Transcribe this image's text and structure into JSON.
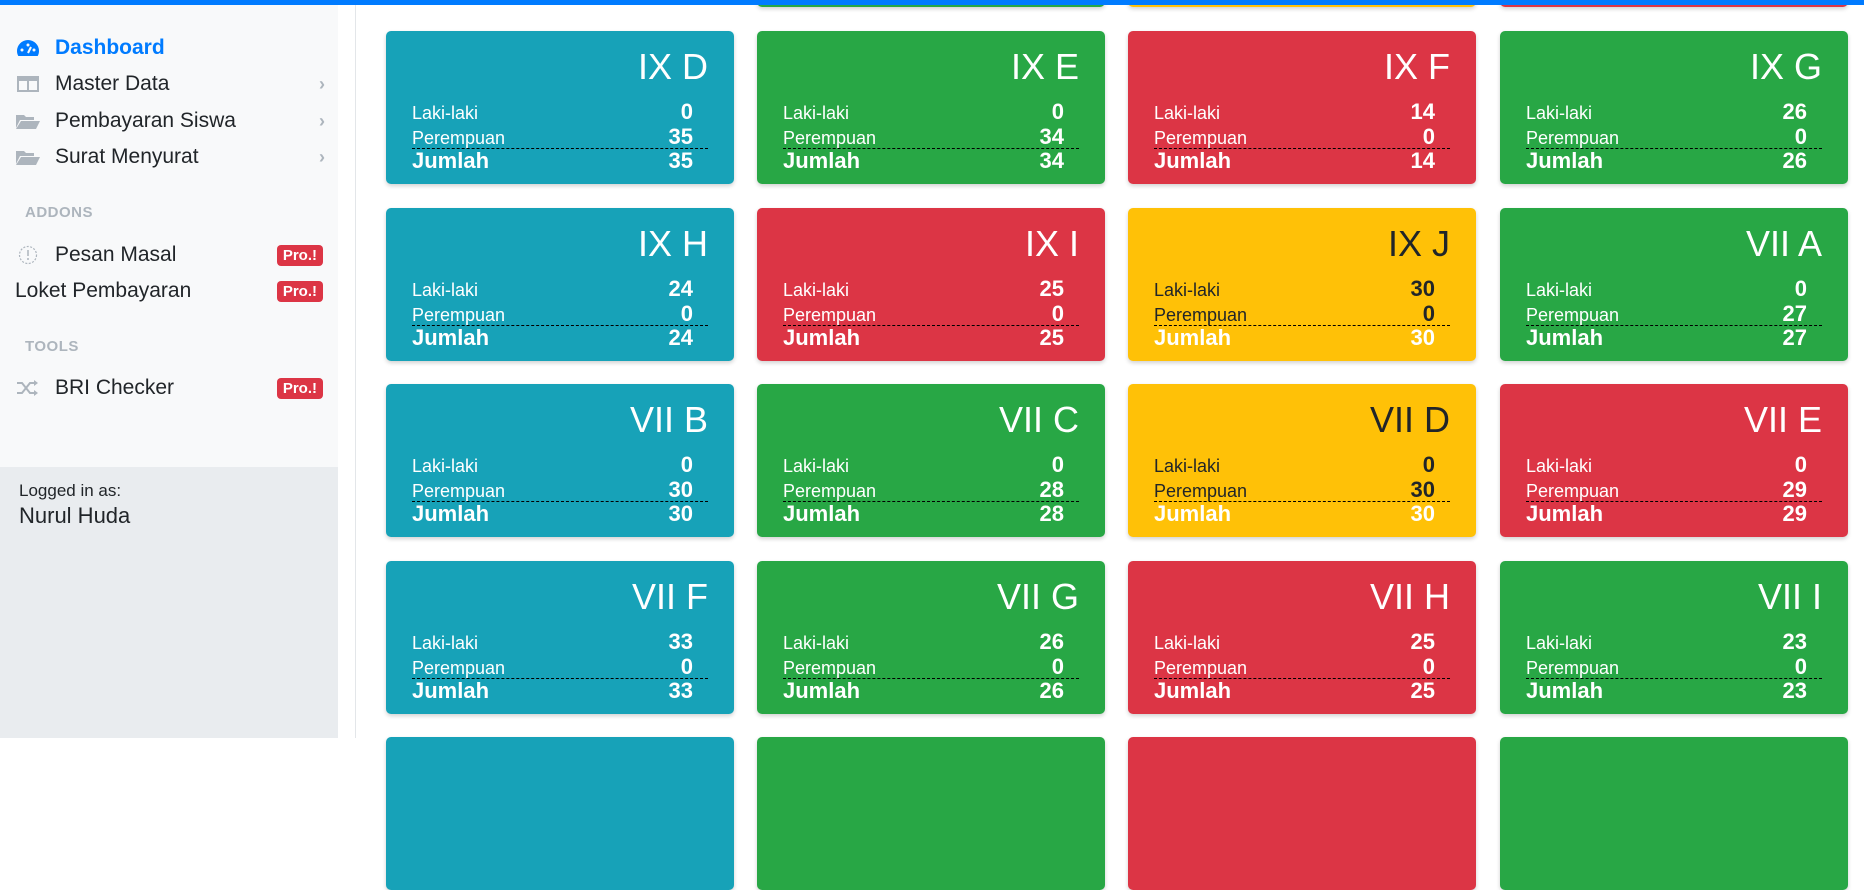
{
  "colors": {
    "primary": "#007bff",
    "info": "#17a2b8",
    "success": "#28a745",
    "danger": "#dc3545",
    "warning": "#ffc107"
  },
  "sidebar": {
    "items": [
      {
        "label": "Dashboard",
        "icon": "dashboard-gauge-icon",
        "active": true
      },
      {
        "label": "Master Data",
        "icon": "columns-icon"
      },
      {
        "label": "Pembayaran Siswa",
        "icon": "folder-open-icon"
      },
      {
        "label": "Surat Menyurat",
        "icon": "folder-open-icon"
      }
    ],
    "sections": [
      {
        "title": "ADDONS",
        "items": [
          {
            "label": "Pesan Masal",
            "icon": "exclamation-circle-icon",
            "badge": "Pro.!"
          },
          {
            "label": "Loket Pembayaran",
            "badge": "Pro.!"
          }
        ]
      },
      {
        "title": "TOOLS",
        "items": [
          {
            "label": "BRI Checker",
            "icon": "shuffle-icon",
            "badge": "Pro.!"
          }
        ]
      }
    ],
    "footer": {
      "logged_in_label": "Logged in as:",
      "user": "Nurul Huda"
    }
  },
  "labels": {
    "male": "Laki-laki",
    "female": "Perempuan",
    "total": "Jumlah"
  },
  "partial_top": [
    "success",
    "warning",
    "danger"
  ],
  "partial_bottom": [
    "info",
    "success",
    "danger",
    "success"
  ],
  "classes": [
    {
      "name": "IX D",
      "color": "info",
      "male": 0,
      "female": 35,
      "total": 35
    },
    {
      "name": "IX E",
      "color": "success",
      "male": 0,
      "female": 34,
      "total": 34
    },
    {
      "name": "IX F",
      "color": "danger",
      "male": 14,
      "female": 0,
      "total": 14
    },
    {
      "name": "IX G",
      "color": "success",
      "male": 26,
      "female": 0,
      "total": 26
    },
    {
      "name": "IX H",
      "color": "info",
      "male": 24,
      "female": 0,
      "total": 24
    },
    {
      "name": "IX I",
      "color": "danger",
      "male": 25,
      "female": 0,
      "total": 25
    },
    {
      "name": "IX J",
      "color": "warning",
      "male": 30,
      "female": 0,
      "total": 30
    },
    {
      "name": "VII A",
      "color": "success",
      "male": 0,
      "female": 27,
      "total": 27
    },
    {
      "name": "VII B",
      "color": "info",
      "male": 0,
      "female": 30,
      "total": 30
    },
    {
      "name": "VII C",
      "color": "success",
      "male": 0,
      "female": 28,
      "total": 28
    },
    {
      "name": "VII D",
      "color": "warning",
      "male": 0,
      "female": 30,
      "total": 30
    },
    {
      "name": "VII E",
      "color": "danger",
      "male": 0,
      "female": 29,
      "total": 29
    },
    {
      "name": "VII F",
      "color": "info",
      "male": 33,
      "female": 0,
      "total": 33
    },
    {
      "name": "VII G",
      "color": "success",
      "male": 26,
      "female": 0,
      "total": 26
    },
    {
      "name": "VII H",
      "color": "danger",
      "male": 25,
      "female": 0,
      "total": 25
    },
    {
      "name": "VII I",
      "color": "success",
      "male": 23,
      "female": 0,
      "total": 23
    }
  ]
}
